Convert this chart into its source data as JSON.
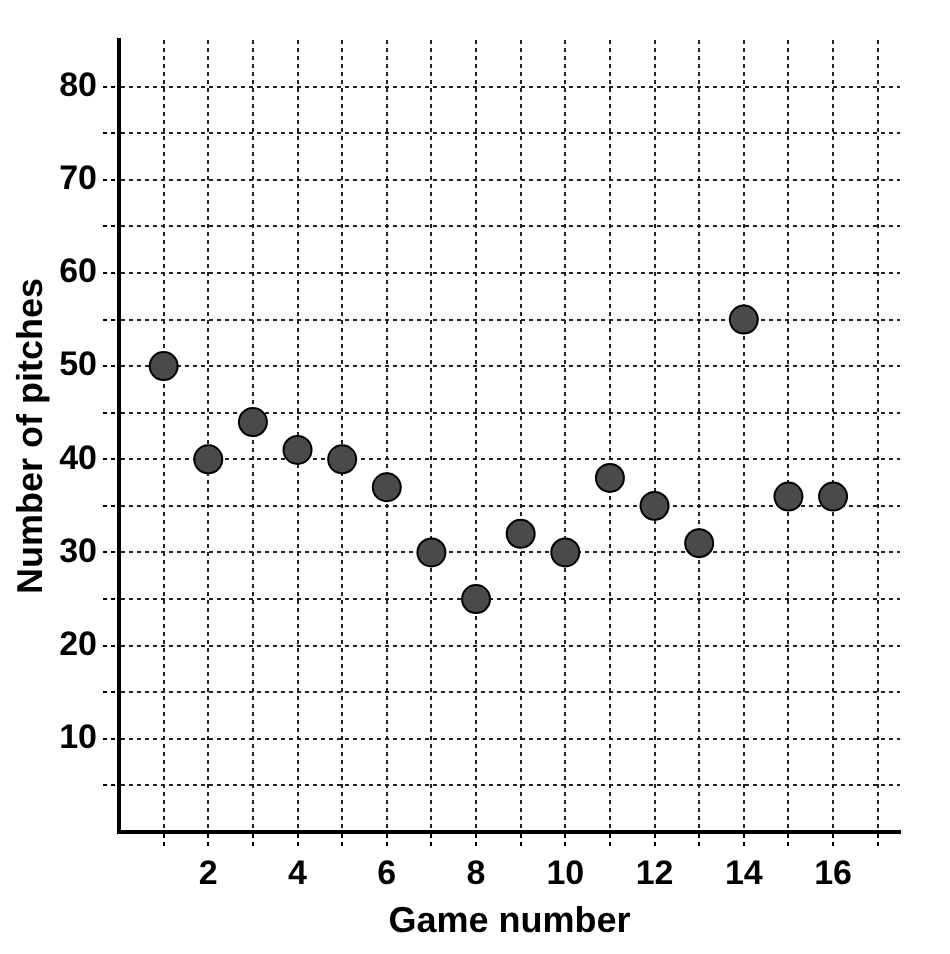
{
  "chart_data": {
    "type": "scatter",
    "xlabel": "Game number",
    "ylabel": "Number of pitches",
    "x": [
      1,
      2,
      3,
      4,
      5,
      6,
      7,
      8,
      9,
      10,
      11,
      12,
      13,
      14,
      15,
      16
    ],
    "values": [
      50,
      40,
      44,
      41,
      40,
      37,
      30,
      25,
      32,
      30,
      38,
      35,
      31,
      55,
      36,
      36
    ],
    "color": "#4a4a4a",
    "marker": "circle",
    "grid": true,
    "xlim": [
      0,
      17.5
    ],
    "ylim": [
      0,
      85
    ],
    "xticks": [
      {
        "value": 1,
        "label": null
      },
      2,
      {
        "value": 3,
        "label": null
      },
      4,
      {
        "value": 5,
        "label": null
      },
      6,
      {
        "value": 7,
        "label": null
      },
      8,
      {
        "value": 9,
        "label": null
      },
      10,
      {
        "value": 11,
        "label": null
      },
      12,
      {
        "value": 13,
        "label": null
      },
      14,
      {
        "value": 15,
        "label": null
      },
      16,
      {
        "value": 17,
        "label": null
      }
    ],
    "yticks": [
      {
        "value": 5,
        "label": null
      },
      10,
      {
        "value": 15,
        "label": null
      },
      20,
      {
        "value": 25,
        "label": null
      },
      30,
      {
        "value": 35,
        "label": null
      },
      40,
      {
        "value": 45,
        "label": null
      },
      50,
      {
        "value": 55,
        "label": null
      },
      60,
      {
        "value": 65,
        "label": null
      },
      70,
      {
        "value": 75,
        "label": null
      },
      80
    ]
  }
}
